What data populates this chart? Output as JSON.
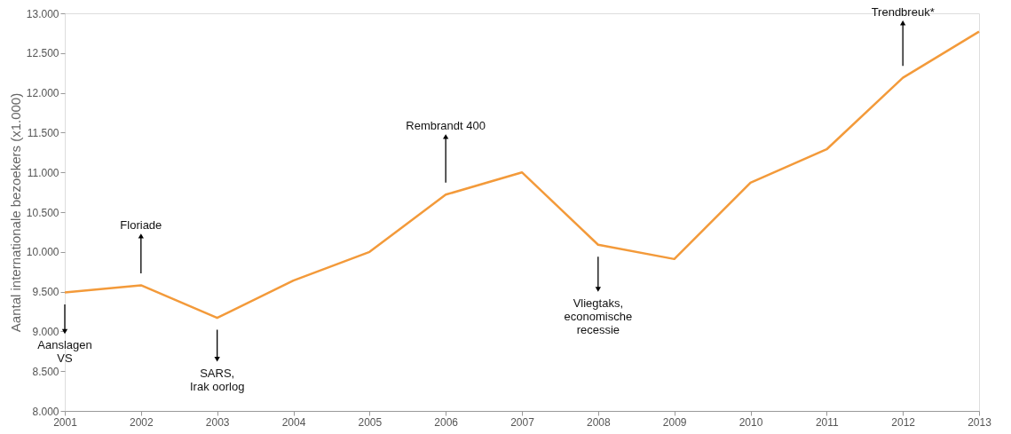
{
  "chart_data": {
    "type": "line",
    "ylabel": "Aantal internationale bezoekers (x1.000)",
    "x": [
      2001,
      2002,
      2003,
      2004,
      2005,
      2006,
      2007,
      2008,
      2009,
      2010,
      2011,
      2012,
      2013
    ],
    "values": [
      9490,
      9580,
      9170,
      9640,
      10000,
      10720,
      11000,
      10090,
      9910,
      10870,
      11290,
      12190,
      12770
    ],
    "color": "#f39a3a",
    "xlim": [
      2001,
      2013
    ],
    "xticks": [
      2001,
      2002,
      2003,
      2004,
      2005,
      2006,
      2007,
      2008,
      2009,
      2010,
      2011,
      2012,
      2013
    ],
    "ylim": [
      8000,
      13000
    ],
    "yticks": [
      {
        "value": 8000,
        "label": "8.000"
      },
      {
        "value": 8500,
        "label": "8.500"
      },
      {
        "value": 9000,
        "label": "9.000"
      },
      {
        "value": 9500,
        "label": "9.500"
      },
      {
        "value": 10000,
        "label": "10.000"
      },
      {
        "value": 10500,
        "label": "10.500"
      },
      {
        "value": 11000,
        "label": "11.000"
      },
      {
        "value": 11500,
        "label": "11.500"
      },
      {
        "value": 12000,
        "label": "12.000"
      },
      {
        "value": 12500,
        "label": "12.500"
      },
      {
        "value": 13000,
        "label": "13.000"
      }
    ],
    "annotations": [
      {
        "text": "Aanslagen\nVS",
        "x": 2001,
        "y": 9000
      },
      {
        "text": "Floriade",
        "x": 2002,
        "y": 10200
      },
      {
        "text": "SARS,\nIrak oorlog",
        "x": 2003,
        "y": 8650
      },
      {
        "text": "Rembrandt 400",
        "x": 2006,
        "y": 11450
      },
      {
        "text": "Vliegtaks,\neconomische\nrecessie",
        "x": 2008,
        "y": 9530
      },
      {
        "text": "Trendbreuk*",
        "x": 2012,
        "y": 12880
      }
    ],
    "grid": false
  }
}
